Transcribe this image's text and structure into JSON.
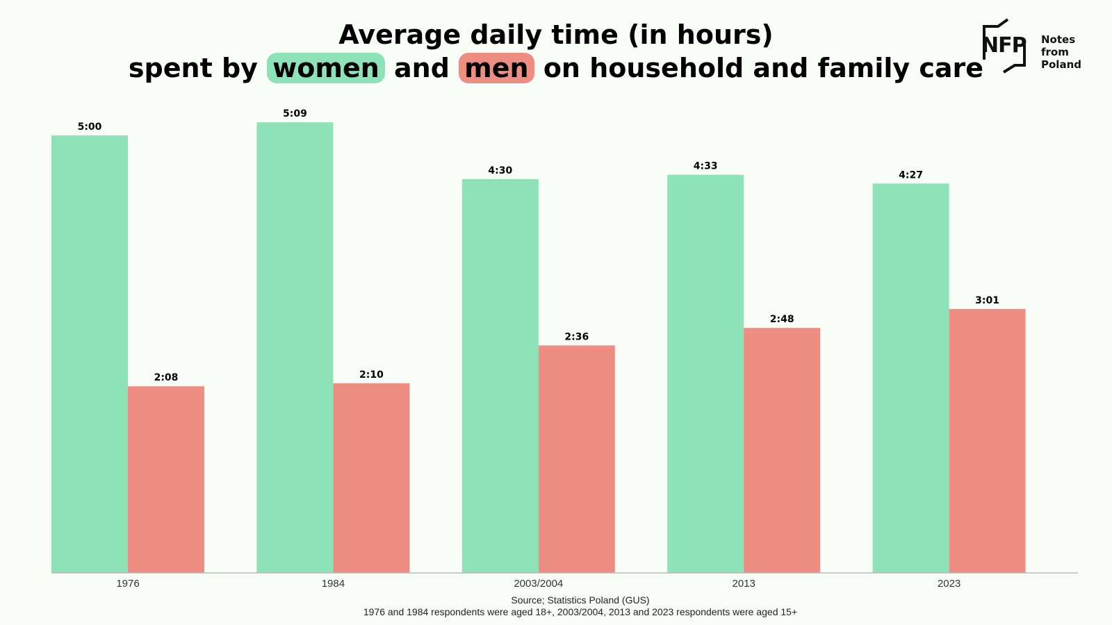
{
  "title": {
    "line1": "Average daily time (in hours)",
    "line2_part1": "spent by ",
    "line2_women": "women",
    "line2_and": " and ",
    "line2_men": "men",
    "line2_part2": " on household and family care"
  },
  "logo": {
    "mark": "NFP",
    "name_line1": "Notes from",
    "name_line2": "Poland"
  },
  "footer": {
    "source": "Source; Statistics Poland (GUS)",
    "note": "1976 and 1984 respondents were aged 18+, 2003/2004, 2013 and 2023 respondents were aged 15+"
  },
  "colors": {
    "women": "#8de2b8",
    "men": "#ee8d82",
    "background": "#f8fcf6",
    "axis": "#bbbbbb"
  },
  "chart_data": {
    "type": "bar",
    "title": "Average daily time (in hours) spent by women and men on household and family care",
    "categories": [
      "1976",
      "1984",
      "2003/2004",
      "2013",
      "2023"
    ],
    "series": [
      {
        "name": "women",
        "values": [
          5.0,
          5.15,
          4.5,
          4.55,
          4.45
        ],
        "labels": [
          "5:00",
          "5:09",
          "4:30",
          "4:33",
          "4:27"
        ],
        "color": "#8de2b8"
      },
      {
        "name": "men",
        "values": [
          2.133,
          2.167,
          2.6,
          2.8,
          3.017
        ],
        "labels": [
          "2:08",
          "2:10",
          "2:36",
          "2:48",
          "3:01"
        ],
        "color": "#ee8d82"
      }
    ],
    "xlabel": "",
    "ylabel": "",
    "ylim": [
      0,
      5.5
    ],
    "grid": false,
    "legend": "none"
  }
}
